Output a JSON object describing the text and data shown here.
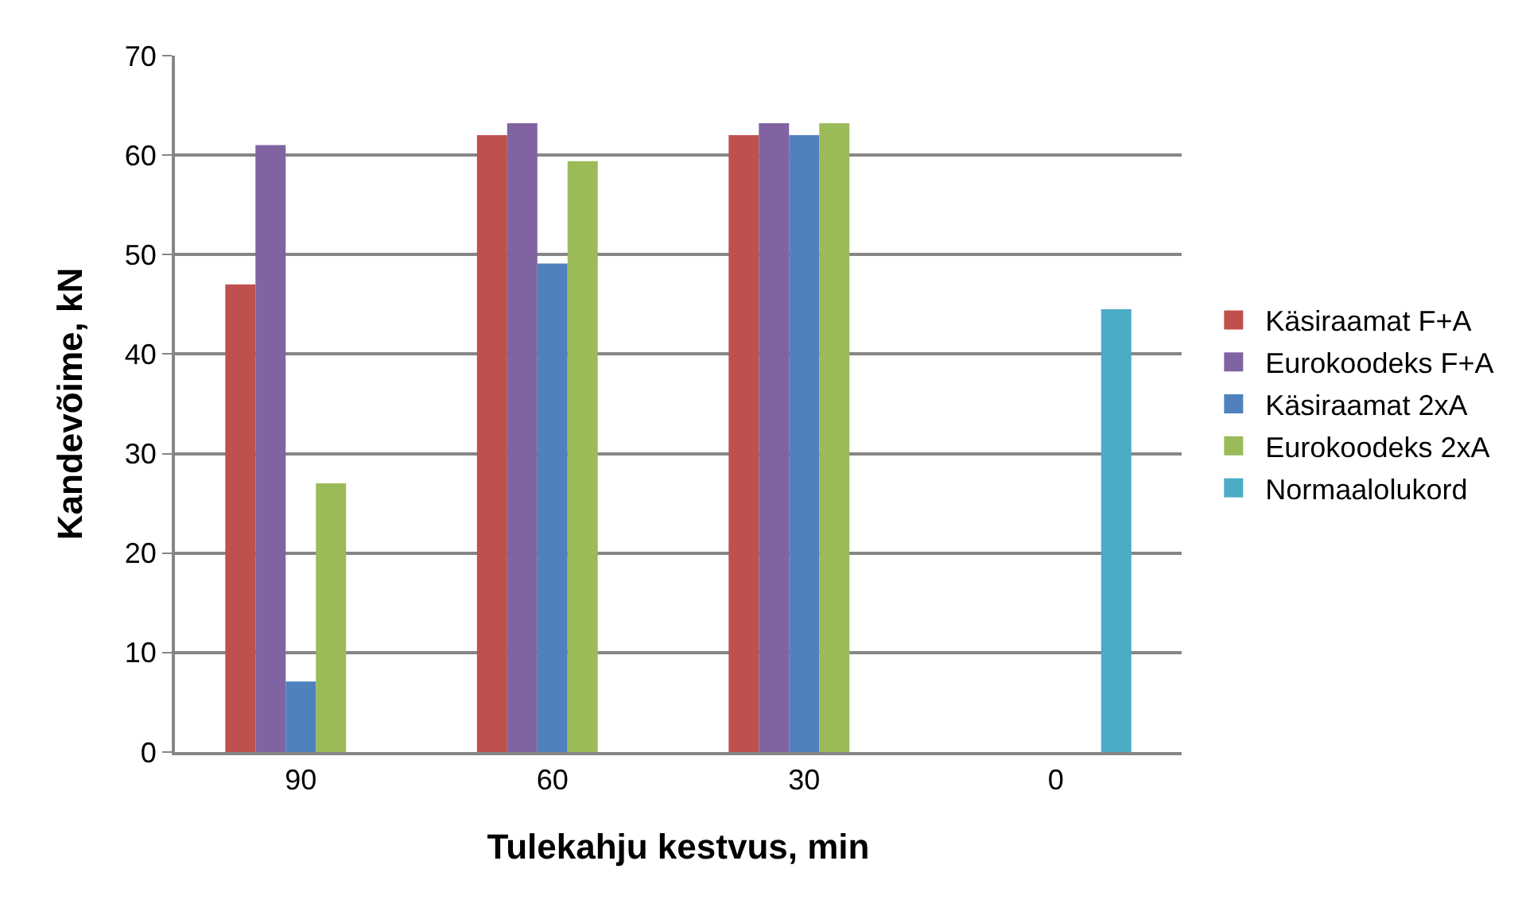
{
  "chart_data": {
    "type": "bar",
    "xlabel": "Tulekahju kestvus, min",
    "ylabel": "Kandevõime, kN",
    "categories": [
      "90",
      "60",
      "30",
      "0"
    ],
    "series": [
      {
        "name": "Käsiraamat F+A",
        "color": "#c0504d",
        "values": [
          47,
          62,
          62,
          null
        ]
      },
      {
        "name": "Eurokoodeks F+A",
        "color": "#8064a2",
        "values": [
          61,
          63.2,
          63.2,
          null
        ]
      },
      {
        "name": "Käsiraamat 2xA",
        "color": "#4f81bd",
        "values": [
          7.1,
          49.1,
          62,
          null
        ]
      },
      {
        "name": "Eurokoodeks 2xA",
        "color": "#9bbb59",
        "values": [
          27,
          59.4,
          63.2,
          null
        ]
      },
      {
        "name": "Normaalolukord",
        "color": "#4bacc6",
        "values": [
          null,
          null,
          null,
          44.5
        ]
      }
    ],
    "ylim": [
      0,
      70
    ],
    "yticks": [
      0,
      10,
      20,
      30,
      40,
      50,
      60,
      70
    ],
    "grid": "y",
    "legend": "right"
  }
}
